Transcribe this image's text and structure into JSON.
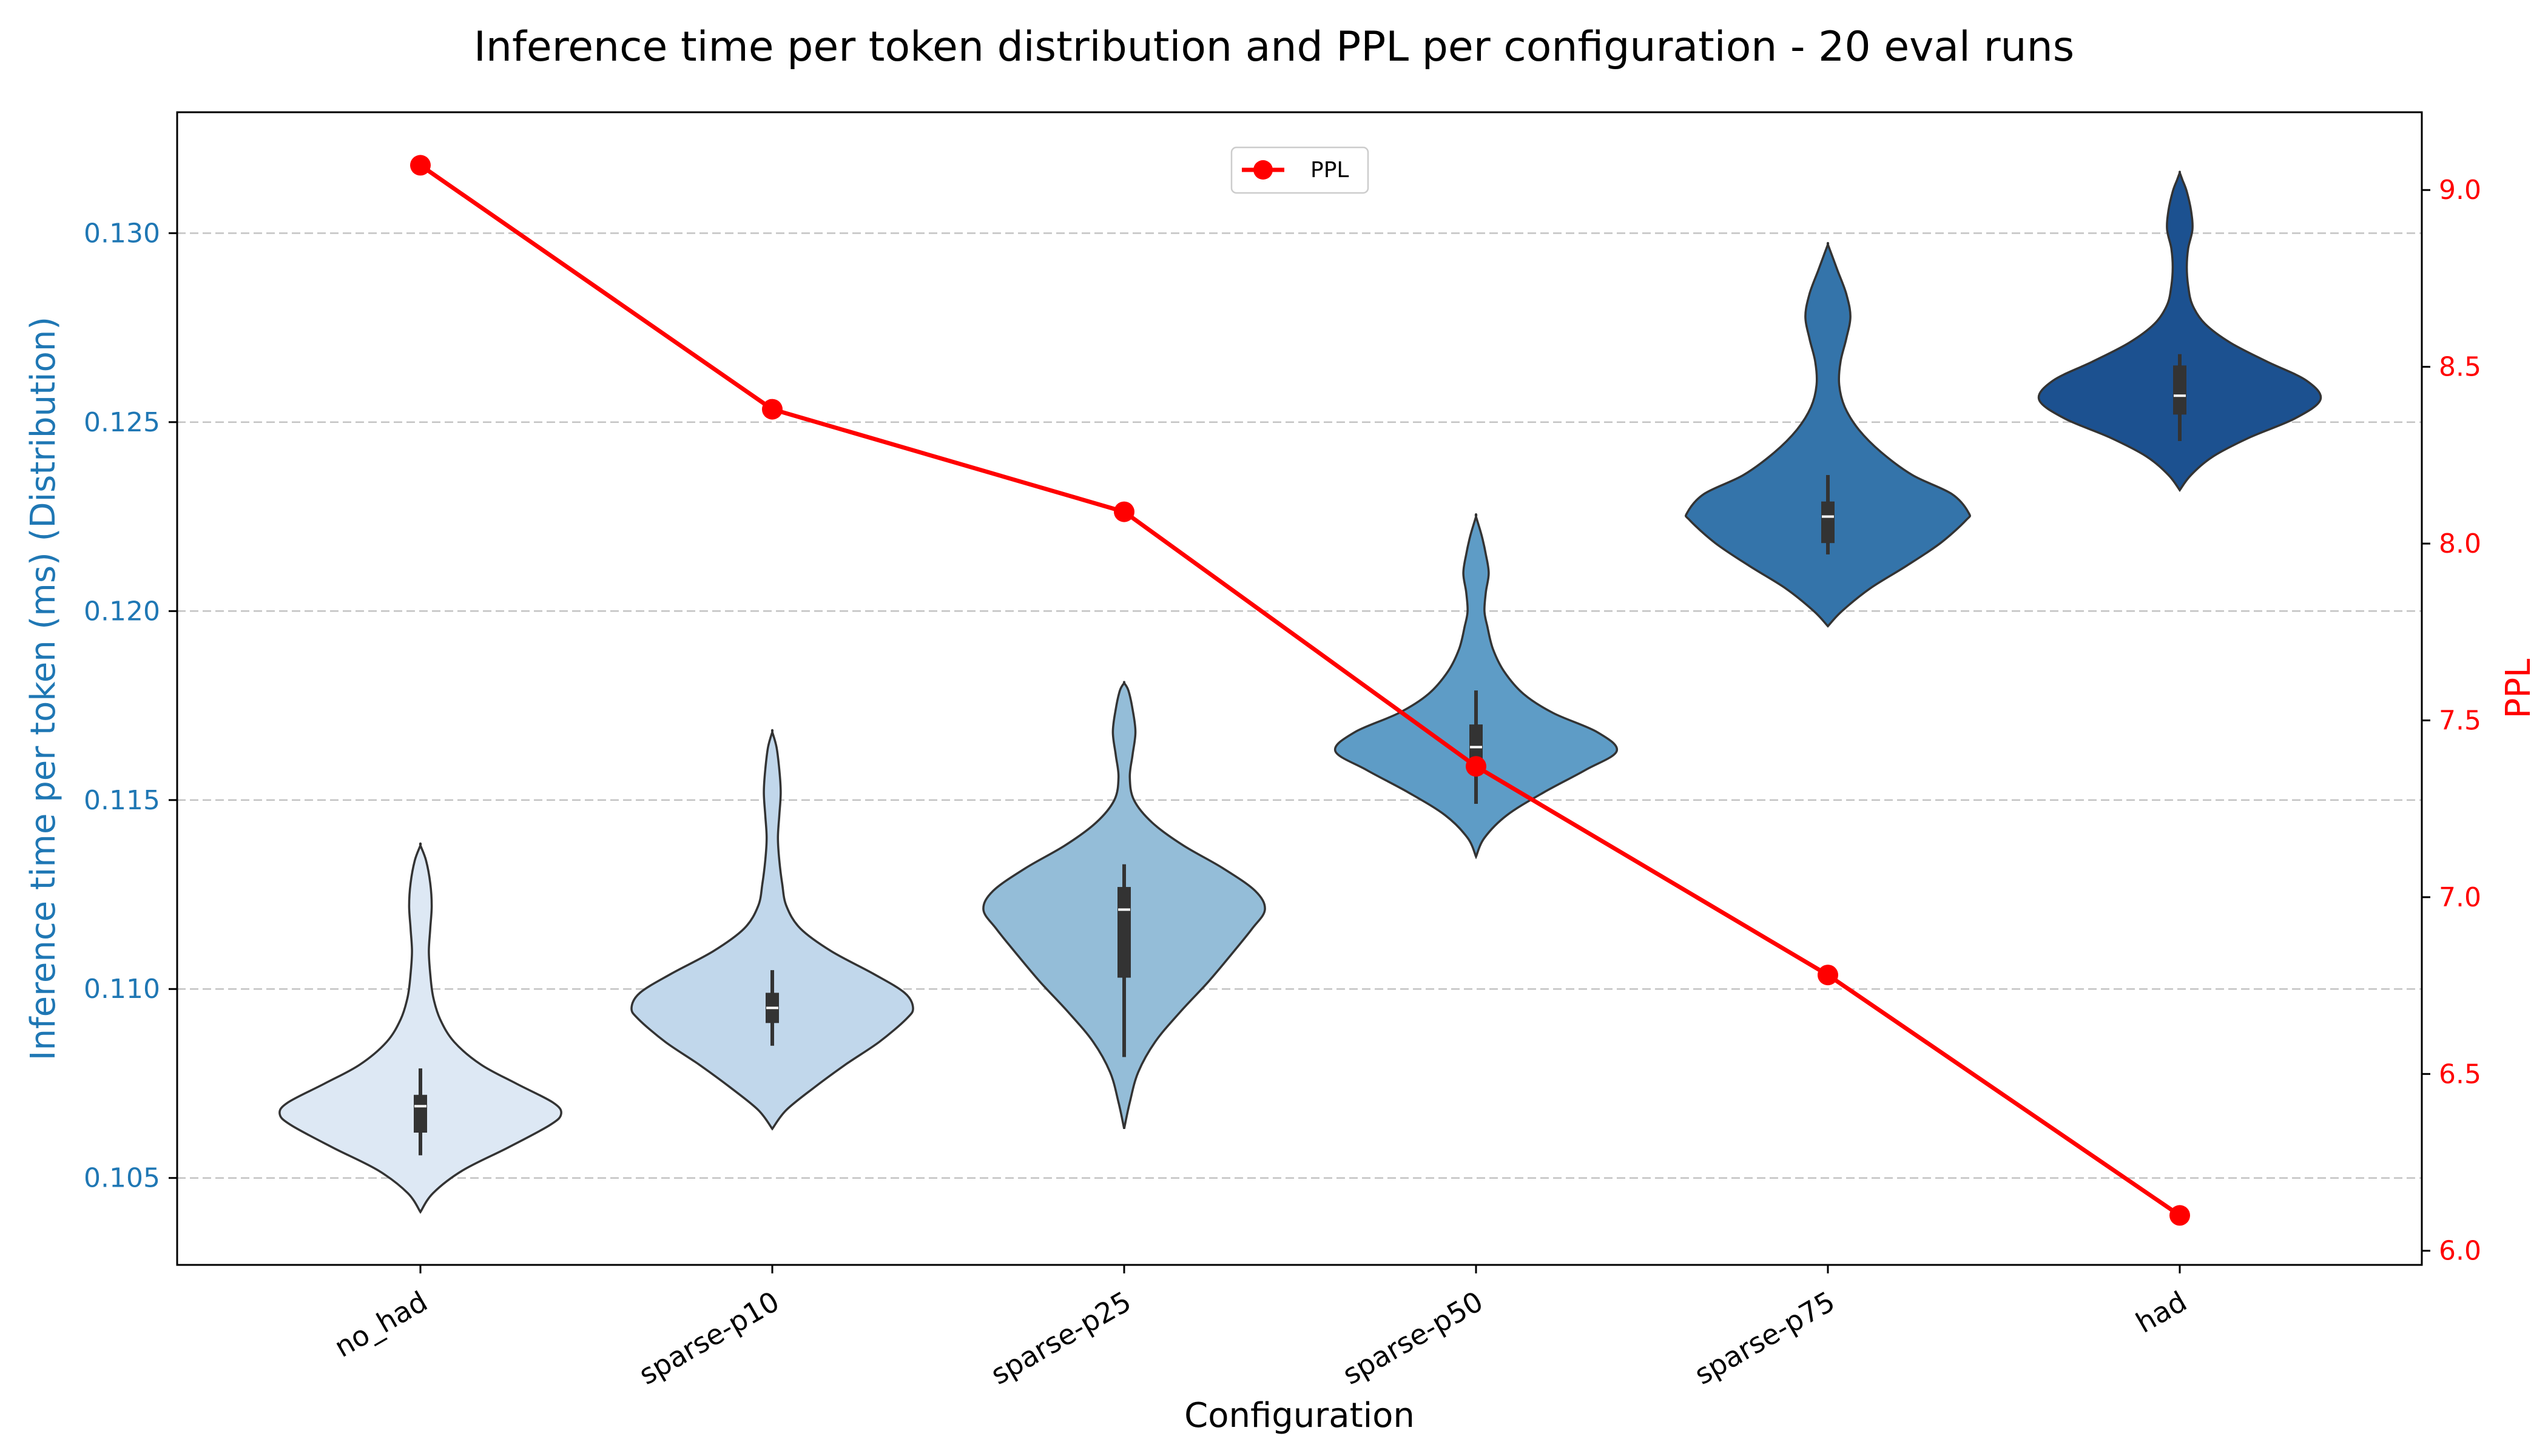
{
  "chart_data": {
    "type": "violin+line",
    "title": "Inference time per token distribution and PPL per configuration - 20 eval runs",
    "xlabel": "Configuration",
    "ylabel_left": "Inference time per token (ms) (Distribution)",
    "ylabel_right": "PPL",
    "categories": [
      "no_had",
      "sparse-p10",
      "sparse-p25",
      "sparse-p50",
      "sparse-p75",
      "had"
    ],
    "ylim_left": [
      0.1027,
      0.1332
    ],
    "ylim_right": [
      5.96,
      9.22
    ],
    "yticks_left": [
      "0.105",
      "0.110",
      "0.115",
      "0.120",
      "0.125",
      "0.130"
    ],
    "yticks_right": [
      "6.0",
      "6.5",
      "7.0",
      "7.5",
      "8.0",
      "8.5",
      "9.0"
    ],
    "grid": "horizontal dashed",
    "legend": {
      "placement": "top-center",
      "entries": [
        "PPL"
      ]
    },
    "violins": [
      {
        "name": "no_had",
        "color": "#dde8f4",
        "min": 0.1041,
        "max": 0.1138,
        "q1": 0.1062,
        "median": 0.1069,
        "q3": 0.1072,
        "whisker_low": 0.1056,
        "whisker_high": 0.1079,
        "profile": [
          [
            0.1041,
            0.0
          ],
          [
            0.1046,
            0.09
          ],
          [
            0.1052,
            0.3
          ],
          [
            0.1058,
            0.62
          ],
          [
            0.1064,
            0.92
          ],
          [
            0.1067,
            1.0
          ],
          [
            0.107,
            0.94
          ],
          [
            0.1075,
            0.68
          ],
          [
            0.108,
            0.43
          ],
          [
            0.1086,
            0.24
          ],
          [
            0.1092,
            0.14
          ],
          [
            0.1098,
            0.09
          ],
          [
            0.1104,
            0.07
          ],
          [
            0.111,
            0.06
          ],
          [
            0.1116,
            0.07
          ],
          [
            0.1122,
            0.08
          ],
          [
            0.1128,
            0.07
          ],
          [
            0.1134,
            0.04
          ],
          [
            0.1138,
            0.0
          ]
        ]
      },
      {
        "name": "sparse-p10",
        "color": "#c1d7eb",
        "min": 0.1063,
        "max": 0.1168,
        "q1": 0.1091,
        "median": 0.1095,
        "q3": 0.1099,
        "whisker_low": 0.1085,
        "whisker_high": 0.1105,
        "profile": [
          [
            0.1063,
            0.0
          ],
          [
            0.1068,
            0.1
          ],
          [
            0.1074,
            0.3
          ],
          [
            0.108,
            0.52
          ],
          [
            0.1086,
            0.76
          ],
          [
            0.1092,
            0.95
          ],
          [
            0.1095,
            1.0
          ],
          [
            0.1099,
            0.94
          ],
          [
            0.1104,
            0.72
          ],
          [
            0.111,
            0.42
          ],
          [
            0.1116,
            0.2
          ],
          [
            0.1122,
            0.1
          ],
          [
            0.1128,
            0.07
          ],
          [
            0.1134,
            0.05
          ],
          [
            0.114,
            0.04
          ],
          [
            0.1146,
            0.05
          ],
          [
            0.1152,
            0.06
          ],
          [
            0.1158,
            0.05
          ],
          [
            0.1164,
            0.03
          ],
          [
            0.1168,
            0.0
          ]
        ]
      },
      {
        "name": "sparse-p25",
        "color": "#94bdd8",
        "min": 0.1063,
        "max": 0.1181,
        "q1": 0.1103,
        "median": 0.1121,
        "q3": 0.1127,
        "whisker_low": 0.1082,
        "whisker_high": 0.1133,
        "profile": [
          [
            0.1063,
            0.0
          ],
          [
            0.107,
            0.04
          ],
          [
            0.1078,
            0.1
          ],
          [
            0.1086,
            0.22
          ],
          [
            0.1094,
            0.4
          ],
          [
            0.1102,
            0.6
          ],
          [
            0.111,
            0.78
          ],
          [
            0.1116,
            0.91
          ],
          [
            0.1121,
            1.0
          ],
          [
            0.1126,
            0.93
          ],
          [
            0.1132,
            0.7
          ],
          [
            0.1138,
            0.42
          ],
          [
            0.1144,
            0.2
          ],
          [
            0.115,
            0.07
          ],
          [
            0.1156,
            0.04
          ],
          [
            0.1162,
            0.06
          ],
          [
            0.1168,
            0.08
          ],
          [
            0.1174,
            0.06
          ],
          [
            0.1179,
            0.03
          ],
          [
            0.1181,
            0.0
          ]
        ]
      },
      {
        "name": "sparse-p50",
        "color": "#5e9cc6",
        "min": 0.1135,
        "max": 0.1225,
        "q1": 0.116,
        "median": 0.1164,
        "q3": 0.117,
        "whisker_low": 0.1149,
        "whisker_high": 0.1179,
        "profile": [
          [
            0.1135,
            0.0
          ],
          [
            0.114,
            0.06
          ],
          [
            0.1146,
            0.22
          ],
          [
            0.1152,
            0.48
          ],
          [
            0.1158,
            0.78
          ],
          [
            0.1163,
            1.0
          ],
          [
            0.1168,
            0.86
          ],
          [
            0.1173,
            0.55
          ],
          [
            0.1178,
            0.34
          ],
          [
            0.1184,
            0.2
          ],
          [
            0.119,
            0.12
          ],
          [
            0.1196,
            0.08
          ],
          [
            0.12,
            0.06
          ],
          [
            0.1205,
            0.07
          ],
          [
            0.121,
            0.09
          ],
          [
            0.1215,
            0.07
          ],
          [
            0.122,
            0.04
          ],
          [
            0.1225,
            0.0
          ]
        ]
      },
      {
        "name": "sparse-p75",
        "color": "#3474aa",
        "min": 0.1196,
        "max": 0.1297,
        "q1": 0.1218,
        "median": 0.1225,
        "q3": 0.1229,
        "whisker_low": 0.1215,
        "whisker_high": 0.1236,
        "profile": [
          [
            0.1196,
            0.0
          ],
          [
            0.12,
            0.1
          ],
          [
            0.1206,
            0.3
          ],
          [
            0.1212,
            0.56
          ],
          [
            0.1218,
            0.8
          ],
          [
            0.1224,
            0.98
          ],
          [
            0.1226,
            1.0
          ],
          [
            0.1231,
            0.88
          ],
          [
            0.1236,
            0.6
          ],
          [
            0.1242,
            0.38
          ],
          [
            0.1248,
            0.22
          ],
          [
            0.1254,
            0.12
          ],
          [
            0.126,
            0.08
          ],
          [
            0.1266,
            0.09
          ],
          [
            0.1272,
            0.13
          ],
          [
            0.1278,
            0.16
          ],
          [
            0.1284,
            0.13
          ],
          [
            0.129,
            0.07
          ],
          [
            0.1294,
            0.03
          ],
          [
            0.1297,
            0.0
          ]
        ]
      },
      {
        "name": "had",
        "color": "#1c5190",
        "min": 0.1232,
        "max": 0.1316,
        "q1": 0.1252,
        "median": 0.1257,
        "q3": 0.1265,
        "whisker_low": 0.1245,
        "whisker_high": 0.1268,
        "profile": [
          [
            0.1232,
            0.0
          ],
          [
            0.1236,
            0.08
          ],
          [
            0.1241,
            0.24
          ],
          [
            0.1246,
            0.5
          ],
          [
            0.1251,
            0.82
          ],
          [
            0.1256,
            1.0
          ],
          [
            0.1261,
            0.9
          ],
          [
            0.1266,
            0.62
          ],
          [
            0.1271,
            0.36
          ],
          [
            0.1276,
            0.18
          ],
          [
            0.1281,
            0.09
          ],
          [
            0.1286,
            0.06
          ],
          [
            0.1291,
            0.05
          ],
          [
            0.1296,
            0.06
          ],
          [
            0.1301,
            0.09
          ],
          [
            0.1306,
            0.08
          ],
          [
            0.1311,
            0.05
          ],
          [
            0.1314,
            0.02
          ],
          [
            0.1316,
            0.0
          ]
        ]
      }
    ],
    "series": [
      {
        "name": "PPL",
        "color": "#ff0000",
        "values": [
          9.07,
          8.38,
          8.09,
          7.37,
          6.78,
          6.1
        ]
      }
    ]
  }
}
